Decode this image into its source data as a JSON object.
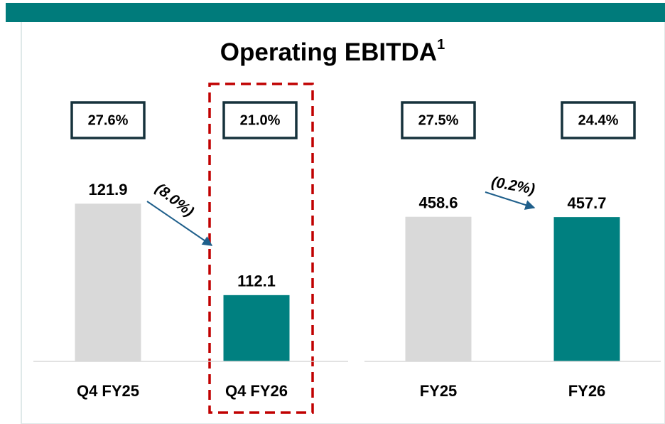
{
  "title": "Operating EBITDA",
  "title_footnote": "1",
  "chart_data": [
    {
      "type": "bar",
      "categories": [
        "Q4 FY25",
        "Q4 FY26"
      ],
      "values": [
        121.9,
        112.1
      ],
      "colors": [
        "#d9d9d9",
        "#008080"
      ],
      "ylim": [
        105,
        130
      ],
      "margins": [
        "27.6%",
        "21.0%"
      ],
      "change": "(8.0%)"
    },
    {
      "type": "bar",
      "categories": [
        "FY25",
        "FY26"
      ],
      "values": [
        458.6,
        457.7
      ],
      "colors": [
        "#d9d9d9",
        "#008080"
      ],
      "ylim": [
        0,
        740
      ],
      "margins": [
        "27.5%",
        "24.4%"
      ],
      "change": "(0.2%)"
    }
  ]
}
